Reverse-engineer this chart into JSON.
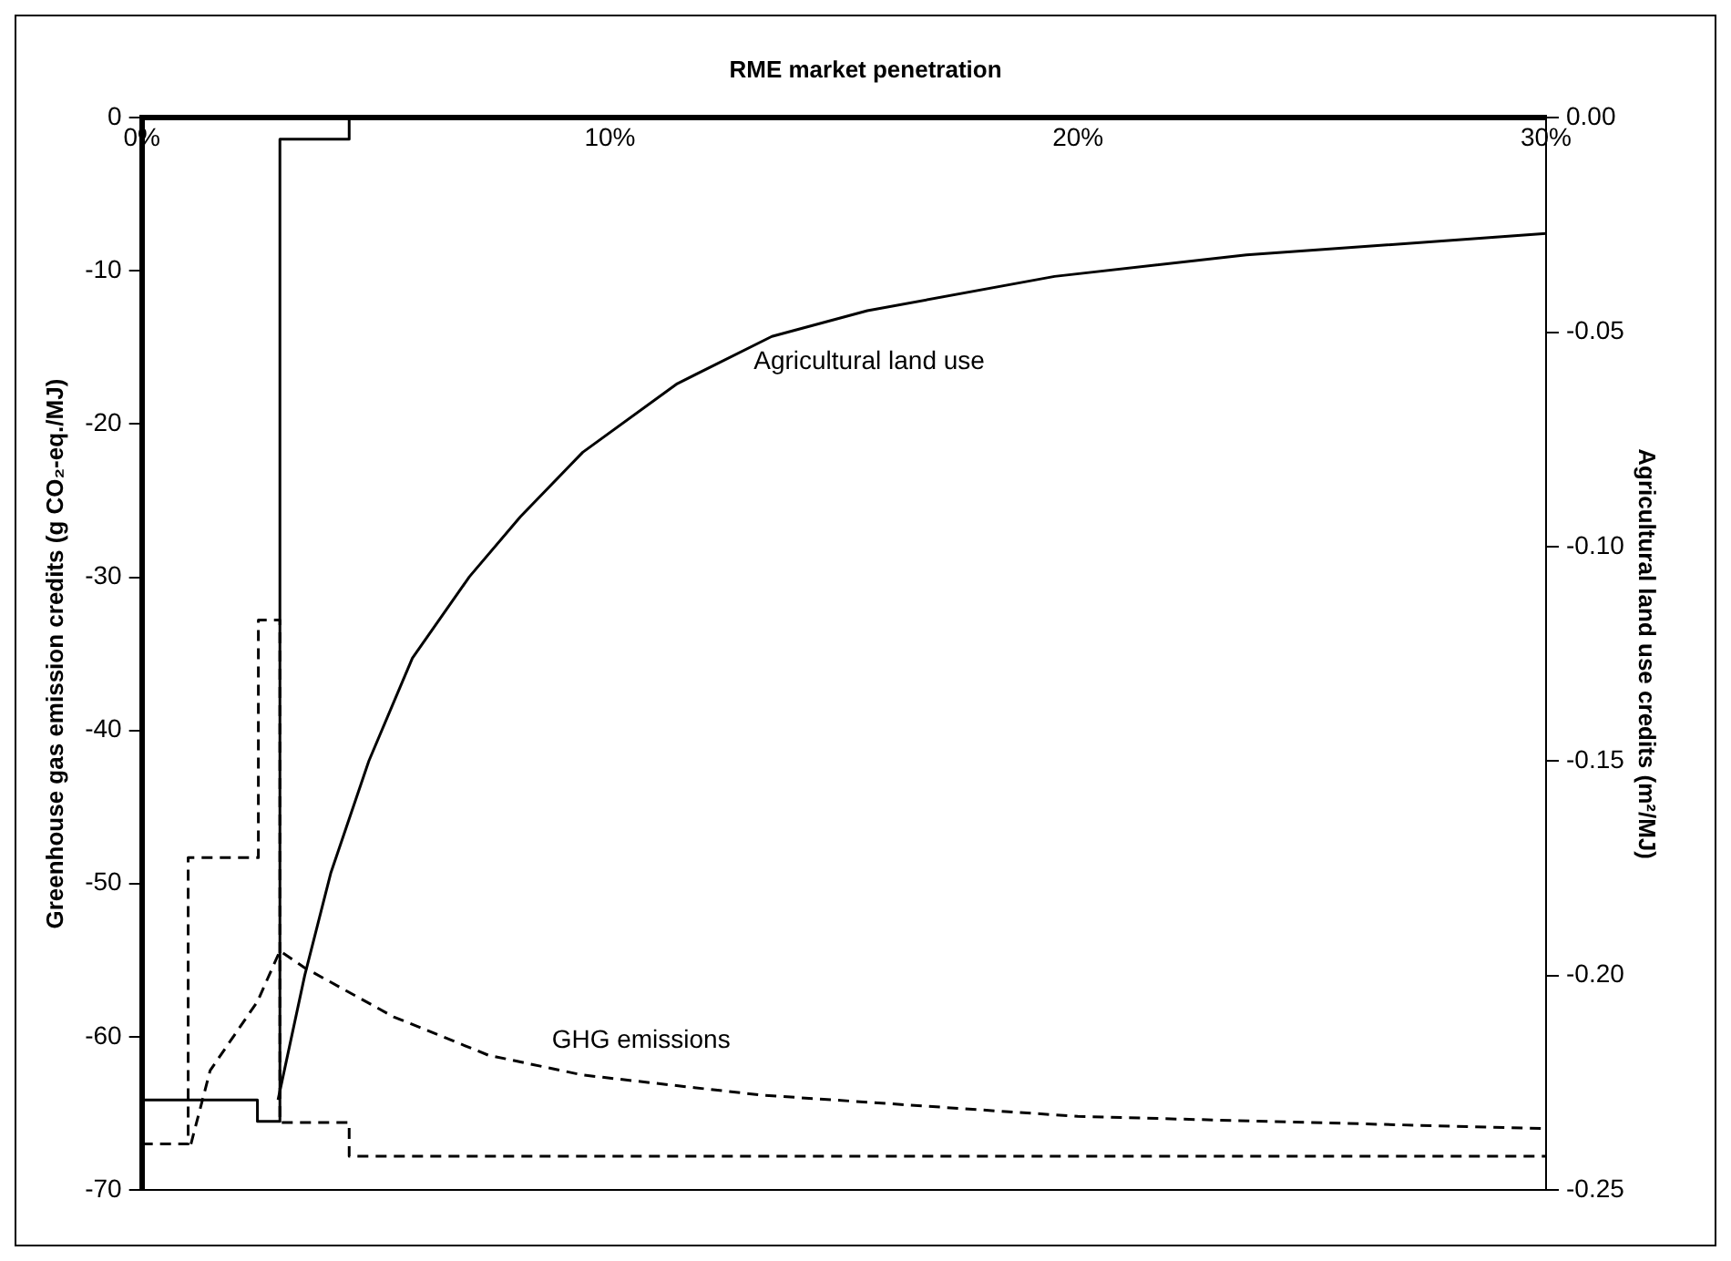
{
  "chart_data": {
    "type": "line",
    "xlabel": "RME market penetration",
    "ylabel": "Greenhouse gas emission credits (g CO₂-eq./MJ)",
    "y2label": "Agricultural land use credits (m²/MJ)",
    "xlim": [
      0,
      30
    ],
    "xticks": [
      {
        "value": 0,
        "label": "0%"
      },
      {
        "value": 10,
        "label": "10%"
      },
      {
        "value": 20,
        "label": "20%"
      },
      {
        "value": 30,
        "label": "30%"
      }
    ],
    "ylim": [
      -70,
      0
    ],
    "yticks": [
      -70,
      -60,
      -50,
      -40,
      -30,
      -20,
      -10,
      0
    ],
    "y2lim": [
      -0.25,
      0
    ],
    "y2ticks": [
      {
        "value": -0.25,
        "label": "-0.25"
      },
      {
        "value": -0.2,
        "label": "-0.20"
      },
      {
        "value": -0.15,
        "label": "-0.15"
      },
      {
        "value": -0.1,
        "label": "-0.10"
      },
      {
        "value": -0.05,
        "label": "-0.05"
      },
      {
        "value": 0,
        "label": "0.00"
      }
    ],
    "grid": false,
    "legend": false,
    "marker": "none",
    "series": [
      {
        "name": "Agricultural land use",
        "type": "line",
        "axis": "y2",
        "color": "#000000",
        "line_style": "solid",
        "x": [
          2.91,
          3.48,
          4.04,
          4.85,
          5.78,
          7.0,
          8.09,
          9.42,
          11.44,
          13.46,
          15.5,
          19.5,
          23.6,
          30
        ],
        "values": [
          -0.229,
          -0.2,
          -0.176,
          -0.15,
          -0.126,
          -0.107,
          -0.093,
          -0.078,
          -0.062,
          -0.051,
          -0.045,
          -0.037,
          -0.032,
          -0.027
        ]
      },
      {
        "name": "GHG emissions",
        "type": "line",
        "axis": "y",
        "color": "#000000",
        "line_style": "dashed",
        "x": [
          1.05,
          1.46,
          2.47,
          2.95,
          3.48,
          5.38,
          7.4,
          9.42,
          13.2,
          20,
          30
        ],
        "values": [
          -67,
          -62.2,
          -57.7,
          -54.4,
          -55.5,
          -58.7,
          -61.2,
          -62.5,
          -63.8,
          -65.2,
          -66
        ]
      },
      {
        "type": "step",
        "axis": "y2",
        "color": "#000000",
        "line_style": "solid",
        "x": [
          0,
          2.47,
          2.95,
          4.43
        ],
        "values": [
          -0.229,
          -0.234,
          -0.005,
          0
        ]
      },
      {
        "type": "step",
        "axis": "y",
        "color": "#000000",
        "line_style": "dashed",
        "x": [
          0,
          0.99,
          2.49,
          2.95,
          4.43,
          30
        ],
        "values": [
          -67,
          -48.3,
          -32.8,
          -65.6,
          -67.8,
          -67.8
        ]
      }
    ]
  }
}
